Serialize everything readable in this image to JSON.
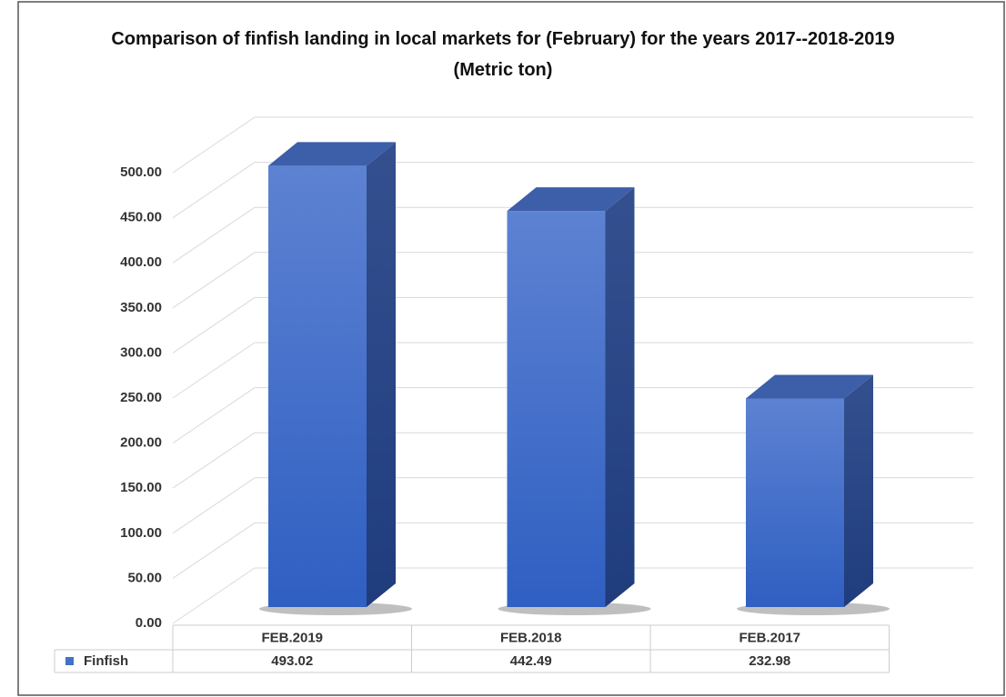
{
  "chart_data": {
    "type": "bar3d",
    "title": "Comparison of finfish landing in local markets for (February) for the years 2017--2018-2019 (Metric ton)",
    "categories": [
      "FEB.2019",
      "FEB.2018",
      "FEB.2017"
    ],
    "series": [
      {
        "name": "Finfish",
        "color": "#4472c4",
        "values": [
          493.02,
          442.49,
          232.98
        ]
      }
    ],
    "ylim": [
      0,
      500
    ],
    "yticks": [
      {
        "value": 0,
        "label": "0.00"
      },
      {
        "value": 50,
        "label": "50.00"
      },
      {
        "value": 100,
        "label": "100.00"
      },
      {
        "value": 150,
        "label": "150.00"
      },
      {
        "value": 200,
        "label": "200.00"
      },
      {
        "value": 250,
        "label": "250.00"
      },
      {
        "value": 300,
        "label": "300.00"
      },
      {
        "value": 350,
        "label": "350.00"
      },
      {
        "value": 400,
        "label": "400.00"
      },
      {
        "value": 450,
        "label": "450.00"
      },
      {
        "value": 500,
        "label": "500.00"
      }
    ],
    "grid": true,
    "data_table": true
  }
}
